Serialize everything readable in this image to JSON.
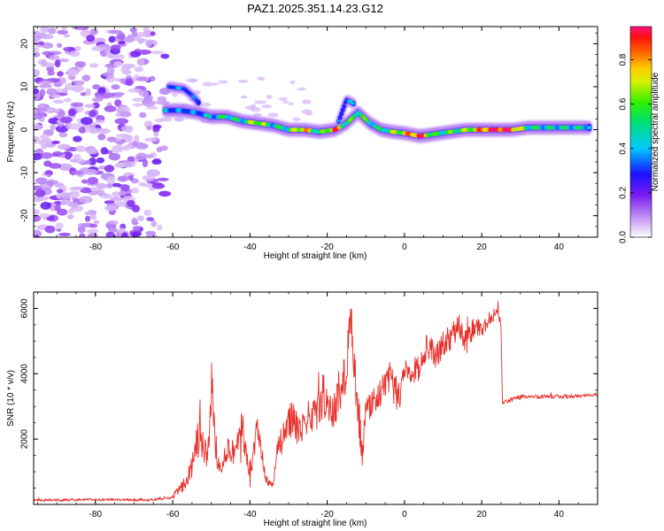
{
  "title": "PAZ1.2025.351.14.23.G12",
  "chart_data": [
    {
      "type": "heatmap",
      "name": "spectrogram",
      "xlabel": "Height of straight line (km)",
      "ylabel": "Frequency (Hz)",
      "xlim": [
        -96,
        50
      ],
      "ylim": [
        -25,
        24
      ],
      "xticks": [
        -80,
        -60,
        -40,
        -20,
        0,
        20,
        40
      ],
      "xtick_labels": [
        "-80",
        "-60",
        "-40",
        "-20",
        "0",
        "20",
        "40"
      ],
      "yticks": [
        -20,
        -10,
        0,
        10,
        20
      ],
      "ytick_labels": [
        "-20",
        "-10",
        "0",
        "10",
        "20"
      ],
      "colorbar": {
        "label": "Normalized spectral amplitude",
        "range": [
          0,
          0.95
        ],
        "ticks": [
          0.0,
          0.2,
          0.4,
          0.6,
          0.8
        ],
        "tick_labels": [
          "0.0",
          "0.2",
          "0.4",
          "0.6",
          "0.8"
        ]
      },
      "noise_region_x": [
        -96,
        -62
      ],
      "signal_track": [
        {
          "x": -62,
          "f": 4.5,
          "a": 0.35
        },
        {
          "x": -58,
          "f": 4.5,
          "a": 0.3
        },
        {
          "x": -54,
          "f": 4.0,
          "a": 0.3
        },
        {
          "x": -50,
          "f": 3.0,
          "a": 0.4
        },
        {
          "x": -46,
          "f": 3.0,
          "a": 0.5
        },
        {
          "x": -42,
          "f": 2.0,
          "a": 0.45
        },
        {
          "x": -38,
          "f": 1.5,
          "a": 0.7
        },
        {
          "x": -34,
          "f": 1.0,
          "a": 0.45
        },
        {
          "x": -30,
          "f": 0.0,
          "a": 0.5
        },
        {
          "x": -26,
          "f": 0.0,
          "a": 0.8
        },
        {
          "x": -22,
          "f": -0.5,
          "a": 0.45
        },
        {
          "x": -18,
          "f": 0.0,
          "a": 0.85
        },
        {
          "x": -15,
          "f": 1.5,
          "a": 0.5
        },
        {
          "x": -12,
          "f": 4.0,
          "a": 0.55
        },
        {
          "x": -9,
          "f": 1.5,
          "a": 0.5
        },
        {
          "x": -6,
          "f": 0.0,
          "a": 0.45
        },
        {
          "x": -3,
          "f": -0.5,
          "a": 0.6
        },
        {
          "x": 0,
          "f": -0.8,
          "a": 0.7
        },
        {
          "x": 4,
          "f": -1.5,
          "a": 0.9
        },
        {
          "x": 8,
          "f": -1.0,
          "a": 0.5
        },
        {
          "x": 12,
          "f": -0.5,
          "a": 0.55
        },
        {
          "x": 16,
          "f": 0.0,
          "a": 0.6
        },
        {
          "x": 20,
          "f": 0.0,
          "a": 0.8
        },
        {
          "x": 24,
          "f": 0.0,
          "a": 0.92
        },
        {
          "x": 28,
          "f": 0.0,
          "a": 0.85
        },
        {
          "x": 32,
          "f": 0.5,
          "a": 0.5
        },
        {
          "x": 36,
          "f": 0.5,
          "a": 0.45
        },
        {
          "x": 40,
          "f": 0.5,
          "a": 0.45
        },
        {
          "x": 44,
          "f": 0.5,
          "a": 0.45
        },
        {
          "x": 48,
          "f": 0.5,
          "a": 0.45
        }
      ],
      "secondary_branches": [
        [
          {
            "x": -61,
            "f": 10.0,
            "a": 0.35
          },
          {
            "x": -57,
            "f": 9.5,
            "a": 0.3
          },
          {
            "x": -55,
            "f": 8.0,
            "a": 0.25
          },
          {
            "x": -53,
            "f": 6.0,
            "a": 0.25
          }
        ],
        [
          {
            "x": -17,
            "f": 2.0,
            "a": 0.3
          },
          {
            "x": -15,
            "f": 7.0,
            "a": 0.3
          },
          {
            "x": -13,
            "f": 6.0,
            "a": 0.35
          }
        ]
      ]
    },
    {
      "type": "line",
      "name": "snr",
      "xlabel": "Height of straight line (km)",
      "ylabel": "SNR (10 * v/v)",
      "xlim": [
        -96,
        50
      ],
      "ylim": [
        0,
        6500
      ],
      "xticks": [
        -80,
        -60,
        -40,
        -20,
        0,
        20,
        40
      ],
      "xtick_labels": [
        "-80",
        "-60",
        "-40",
        "-20",
        "0",
        "20",
        "40"
      ],
      "yticks": [
        2000,
        4000,
        6000
      ],
      "ytick_labels": [
        "2000",
        "4000",
        "6000"
      ],
      "color": "#e8302a",
      "series": {
        "x": [
          -96,
          -80,
          -66,
          -60,
          -57,
          -55,
          -53,
          -51,
          -50,
          -49,
          -48,
          -46,
          -44,
          -42,
          -40,
          -38,
          -36,
          -34,
          -33,
          -31,
          -29,
          -27,
          -25,
          -23,
          -21,
          -19,
          -17,
          -15,
          -14,
          -13,
          -12,
          -11,
          -10,
          -9,
          -7,
          -5,
          -3,
          -1,
          0,
          2,
          4,
          6,
          8,
          10,
          12,
          14,
          16,
          18,
          20,
          22,
          24,
          25,
          25.3,
          30,
          40,
          50
        ],
        "y": [
          130,
          150,
          140,
          220,
          700,
          1200,
          2100,
          1400,
          3600,
          2000,
          1100,
          1700,
          1600,
          2350,
          1000,
          2300,
          800,
          500,
          1700,
          2100,
          2700,
          2300,
          2700,
          2700,
          3400,
          2600,
          3400,
          4000,
          6100,
          4000,
          3100,
          1400,
          2800,
          3100,
          3300,
          3700,
          3900,
          3300,
          4300,
          4100,
          4200,
          4900,
          4500,
          4900,
          5100,
          5500,
          5000,
          5400,
          5300,
          5700,
          5900,
          5500,
          3100,
          3300,
          3300,
          3350
        ],
        "noise_amplitude": [
          40,
          40,
          40,
          60,
          300,
          500,
          700,
          500,
          900,
          500,
          300,
          400,
          400,
          600,
          300,
          500,
          200,
          150,
          400,
          500,
          600,
          500,
          500,
          500,
          700,
          500,
          700,
          800,
          600,
          700,
          700,
          500,
          500,
          500,
          400,
          400,
          400,
          400,
          400,
          400,
          400,
          400,
          400,
          400,
          400,
          350,
          400,
          350,
          300,
          250,
          200,
          200,
          60,
          60,
          60,
          60
        ]
      }
    }
  ]
}
